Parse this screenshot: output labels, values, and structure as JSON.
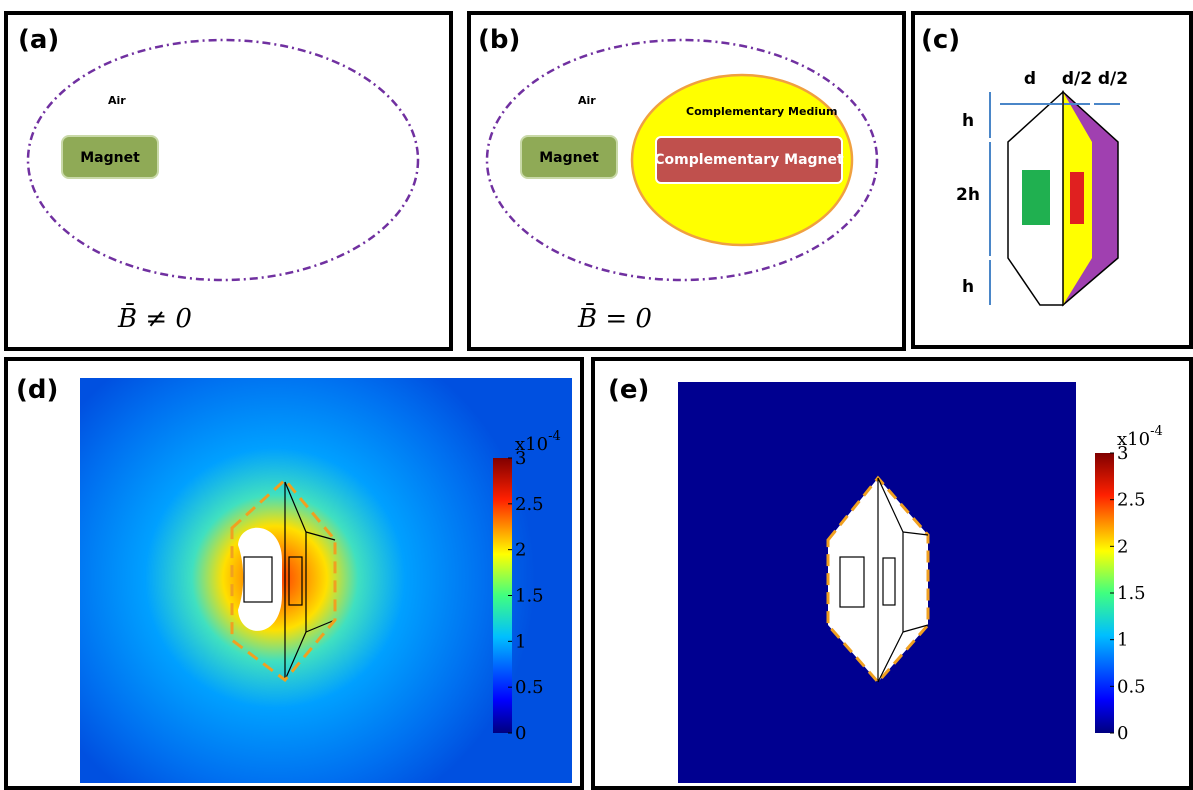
{
  "panel_a": {
    "label": "(a)",
    "air": "Air",
    "magnet": "Magnet",
    "formula": "B̄ ≠ 0"
  },
  "panel_b": {
    "label": "(b)",
    "air": "Air",
    "magnet": "Magnet",
    "medium": "Complementary Medium",
    "complementary_magnet": "Complementary Magnet",
    "formula": "B̄ = 0"
  },
  "panel_c": {
    "label": "(c)",
    "d": "d",
    "d_half_1": "d/2",
    "d_half_2": "d/2",
    "h_top": "h",
    "two_h": "2h",
    "h_bottom": "h"
  },
  "panel_d": {
    "label": "(d)",
    "colorbar": {
      "lim": [
        0,
        3
      ],
      "ticks": [
        0,
        0.5,
        1,
        1.5,
        2,
        2.5,
        3
      ],
      "scale": "x10",
      "exponent": "-4"
    }
  },
  "panel_e": {
    "label": "(e)",
    "colorbar": {
      "lim": [
        0,
        3
      ],
      "ticks": [
        0,
        0.5,
        1,
        1.5,
        2,
        2.5,
        3
      ],
      "scale": "x10",
      "exponent": "-4"
    }
  }
}
